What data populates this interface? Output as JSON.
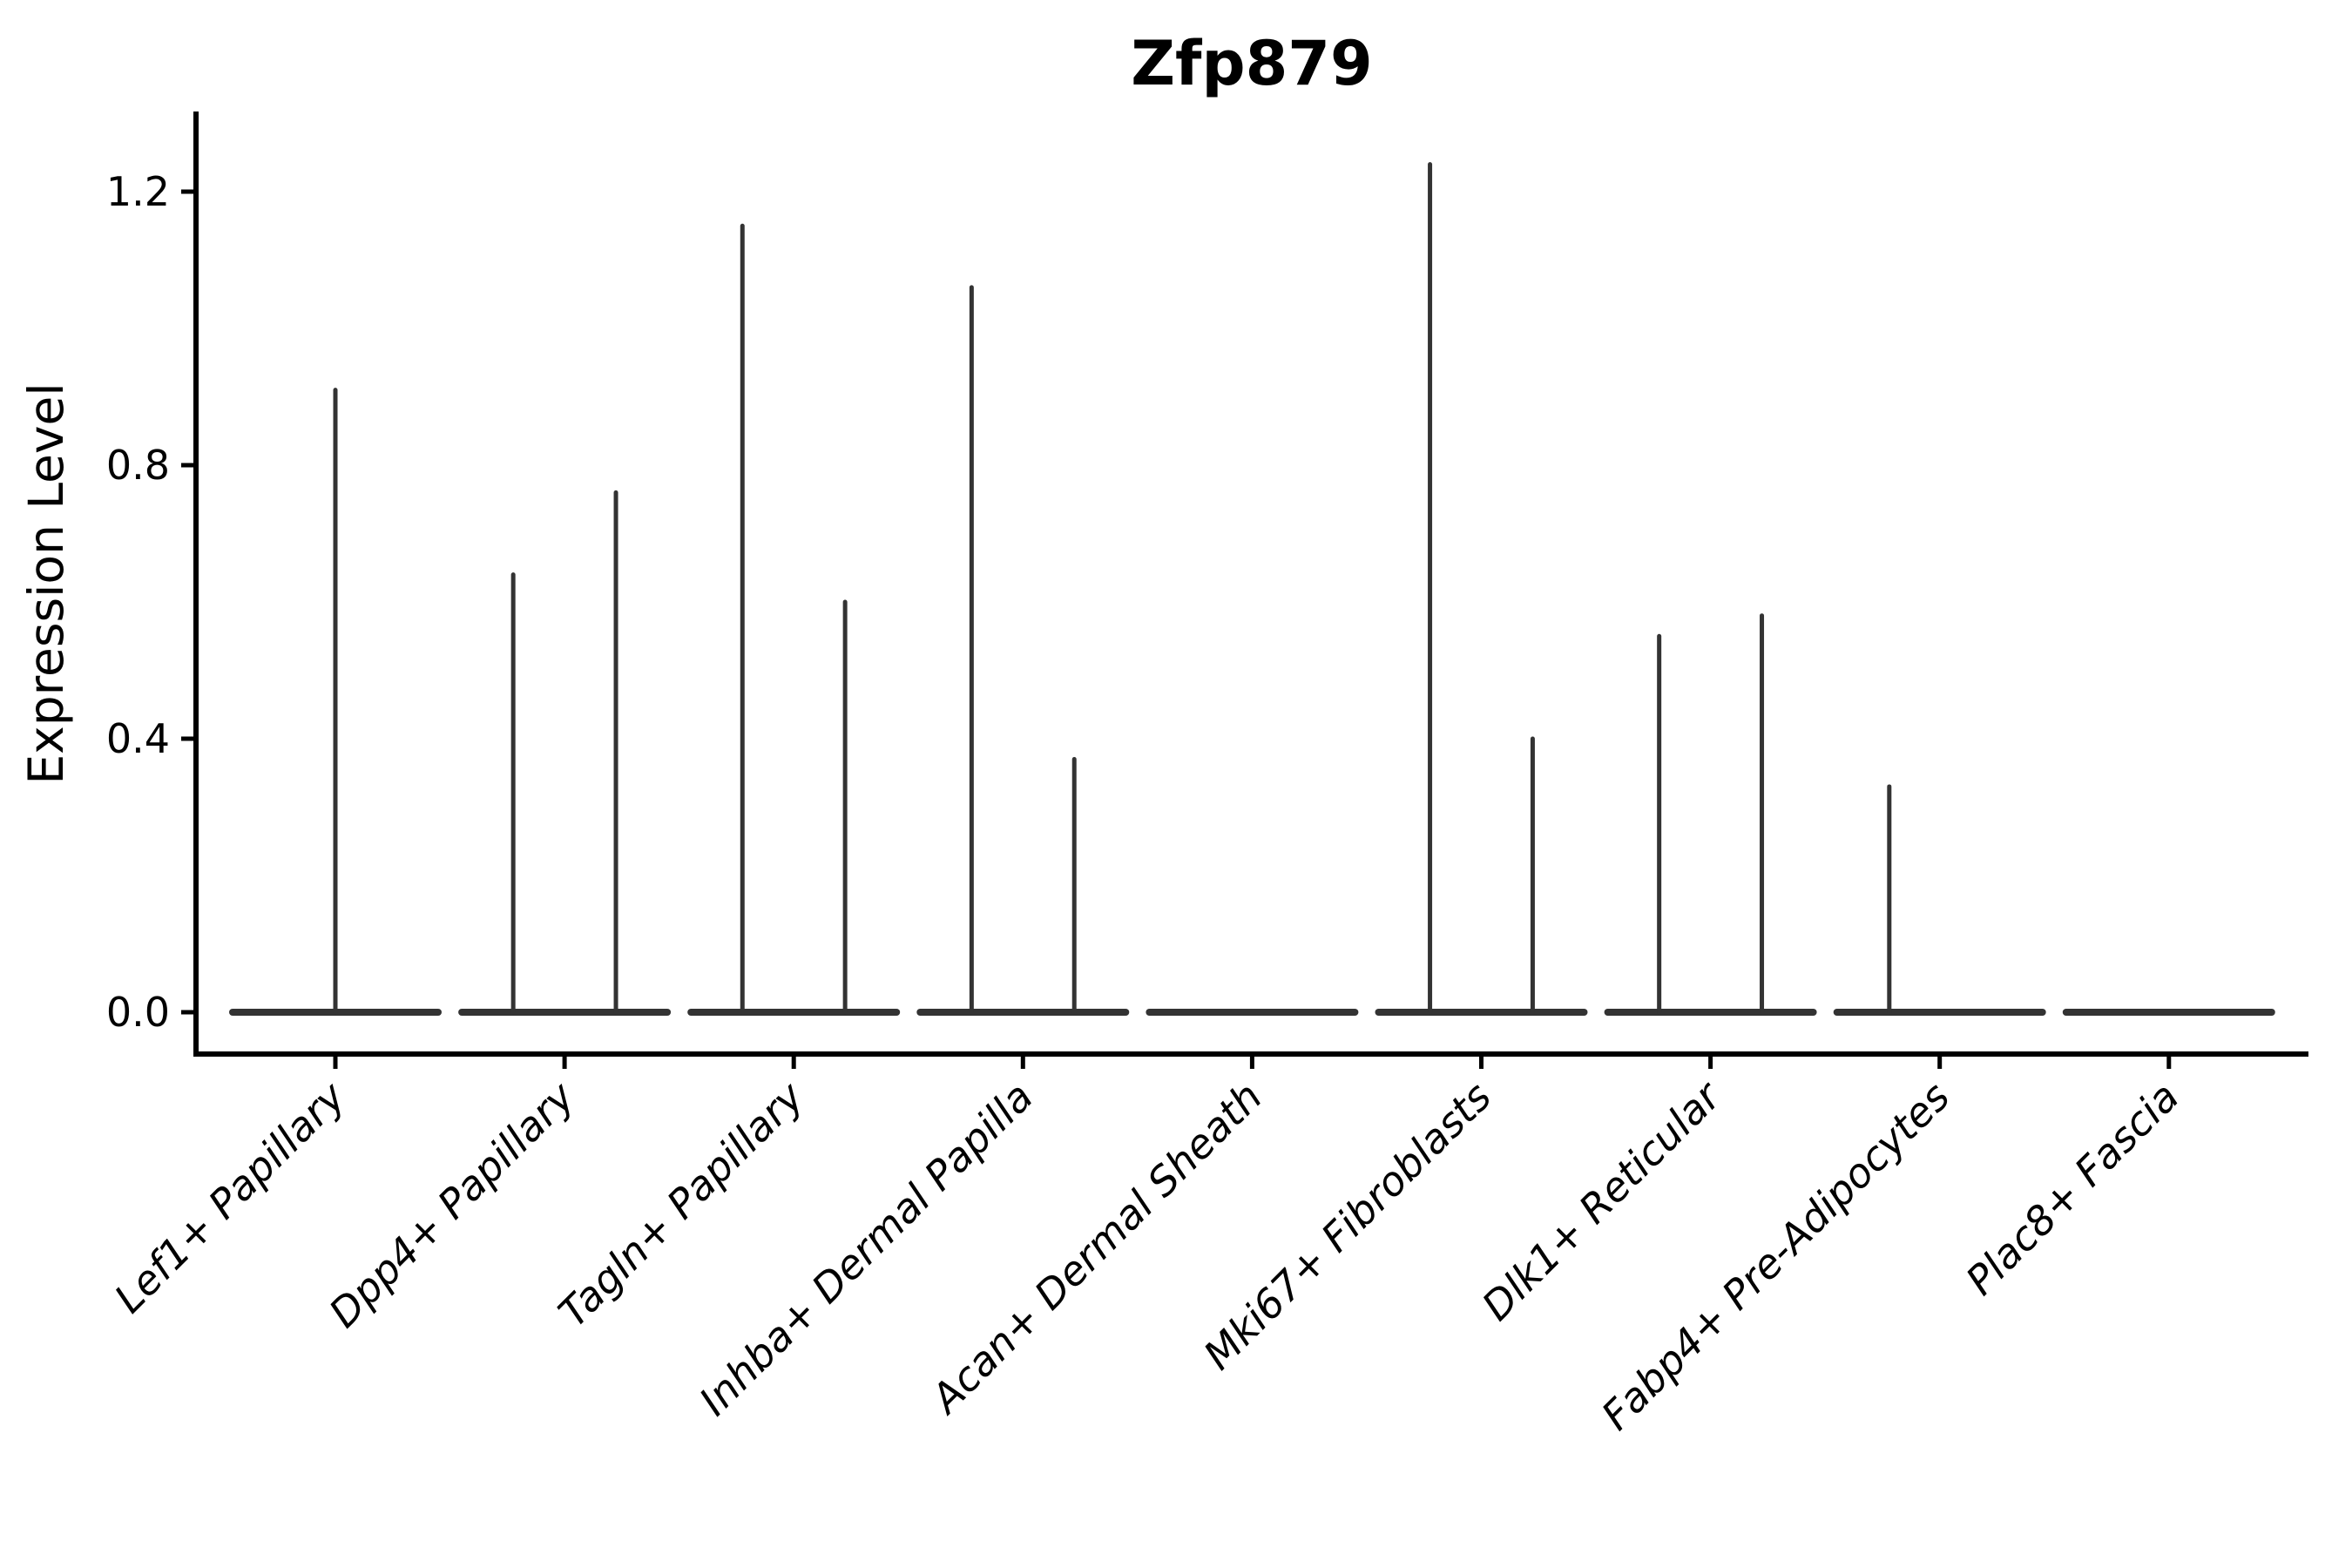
{
  "figure": {
    "title": "Zfp879"
  },
  "y_axis": {
    "label": "Expression Level",
    "tick_labels": [
      "0.0",
      "0.4",
      "0.8",
      "1.2"
    ]
  },
  "x_axis": {
    "label": "",
    "tick_labels": [
      "Lef1+ Papillary",
      "Dpp4+ Papillary",
      "Tagln+ Papillary",
      "Inhba+ Dermal Papilla",
      "Acan+ Dermal Sheath",
      "Mki67+ Fibroblasts",
      "Dlk1+ Reticular",
      "Fabp4+ Pre-Adipocytes",
      "Plac8+ Fascia"
    ]
  },
  "chart_data": {
    "type": "violin",
    "title": "Zfp879",
    "xlabel": "",
    "ylabel": "Expression Level",
    "ylim": [
      0,
      1.3
    ],
    "yticks": [
      0.0,
      0.4,
      0.8,
      1.2
    ],
    "ytick_labels": [
      "0.0",
      "0.4",
      "0.8",
      "1.2"
    ],
    "grid": false,
    "legend": "none",
    "axis_color": "#000000",
    "violin_color": "#333333",
    "label_rotation_deg": 45,
    "categories": [
      "Lef1+ Papillary",
      "Dpp4+ Papillary",
      "Tagln+ Papillary",
      "Inhba+ Dermal Papilla",
      "Acan+ Dermal Sheath",
      "Mki67+ Fibroblasts",
      "Dlk1+ Reticular",
      "Fabp4+ Pre-Adipocytes",
      "Plac8+ Fascia"
    ],
    "violins": [
      {
        "category": "Lef1+ Papillary",
        "base_value": 0.0,
        "spikes": [
          {
            "offset_frac": 0.0,
            "peak": 0.91
          }
        ]
      },
      {
        "category": "Dpp4+ Papillary",
        "base_value": 0.0,
        "spikes": [
          {
            "offset_frac": -0.224,
            "peak": 0.64
          },
          {
            "offset_frac": 0.224,
            "peak": 0.76
          }
        ]
      },
      {
        "category": "Tagln+ Papillary",
        "base_value": 0.0,
        "spikes": [
          {
            "offset_frac": -0.224,
            "peak": 1.15
          },
          {
            "offset_frac": 0.224,
            "peak": 0.6
          }
        ]
      },
      {
        "category": "Inhba+ Dermal Papilla",
        "base_value": 0.0,
        "spikes": [
          {
            "offset_frac": -0.224,
            "peak": 1.06
          },
          {
            "offset_frac": 0.224,
            "peak": 0.37
          }
        ]
      },
      {
        "category": "Acan+ Dermal Sheath",
        "base_value": 0.0,
        "spikes": []
      },
      {
        "category": "Mki67+ Fibroblasts",
        "base_value": 0.0,
        "spikes": [
          {
            "offset_frac": -0.224,
            "peak": 1.24
          },
          {
            "offset_frac": 0.224,
            "peak": 0.4
          }
        ]
      },
      {
        "category": "Dlk1+ Reticular",
        "base_value": 0.0,
        "spikes": [
          {
            "offset_frac": -0.224,
            "peak": 0.55
          },
          {
            "offset_frac": 0.224,
            "peak": 0.58
          }
        ]
      },
      {
        "category": "Fabp4+ Pre-Adipocytes",
        "base_value": 0.0,
        "spikes": [
          {
            "offset_frac": -0.22,
            "peak": 0.33
          }
        ]
      },
      {
        "category": "Plac8+ Fascia",
        "base_value": 0.0,
        "spikes": []
      }
    ]
  }
}
